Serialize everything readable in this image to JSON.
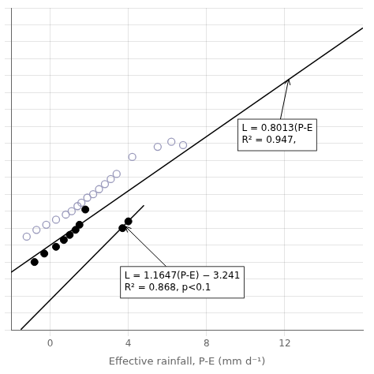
{
  "chart_data": {
    "type": "scatter",
    "xlabel": "Effective rainfall, P-E (mm d⁻¹)",
    "xlim": [
      -2,
      16
    ],
    "ylim": [
      -5,
      14
    ],
    "xticks": [
      0,
      4,
      8,
      12
    ],
    "yticks": [
      -5,
      -4,
      -3,
      -2,
      -1,
      0,
      1,
      2,
      3,
      4,
      5,
      6,
      7,
      8,
      9,
      10,
      11,
      12,
      13,
      14
    ],
    "tick_labels": "x",
    "grid": true,
    "series": [
      {
        "type": "scatter",
        "marker": "open_circle",
        "color": "#9999bb",
        "x": [
          -1.2,
          -0.7,
          -0.2,
          0.3,
          0.8,
          1.1,
          1.4,
          1.6,
          1.9,
          2.2,
          2.5,
          2.8,
          3.1,
          3.4,
          4.2,
          5.5,
          6.2,
          6.8
        ],
        "values": [
          0.5,
          0.9,
          1.2,
          1.5,
          1.8,
          2.0,
          2.3,
          2.5,
          2.8,
          3.0,
          3.3,
          3.6,
          3.9,
          4.2,
          5.2,
          5.8,
          6.1,
          5.9
        ]
      },
      {
        "type": "scatter",
        "marker": "circle",
        "color": "#000000",
        "x": [
          -0.8,
          -0.3,
          0.3,
          0.7,
          1.0,
          1.3,
          1.5,
          1.8,
          3.7,
          4.0
        ],
        "values": [
          -1.0,
          -0.5,
          -0.1,
          0.3,
          0.6,
          0.9,
          1.2,
          2.1,
          1.0,
          1.4
        ]
      },
      {
        "type": "line",
        "marker": "none",
        "line_style": "solid",
        "color": "#000000",
        "x": [
          -1.5,
          4.8
        ],
        "values": [
          -4.98805,
          2.34956
        ]
      },
      {
        "type": "line",
        "marker": "none",
        "line_style": "solid",
        "color": "#000000",
        "x": [
          -2.0,
          16.0
        ],
        "values": [
          -1.6026,
          12.8208
        ]
      }
    ],
    "annotations": [
      {
        "text": "L = 1.1647(P-E) − 3.241\nR² = 0.868, p<0.1",
        "xy": [
          3.85,
          1.1
        ],
        "xytext": [
          3.8,
          -1.5
        ]
      },
      {
        "text": "L = 0.8013(P-E\nR² = 0.947,",
        "xy": [
          12.2,
          9.8
        ],
        "xytext": [
          9.8,
          7.2
        ]
      }
    ]
  }
}
